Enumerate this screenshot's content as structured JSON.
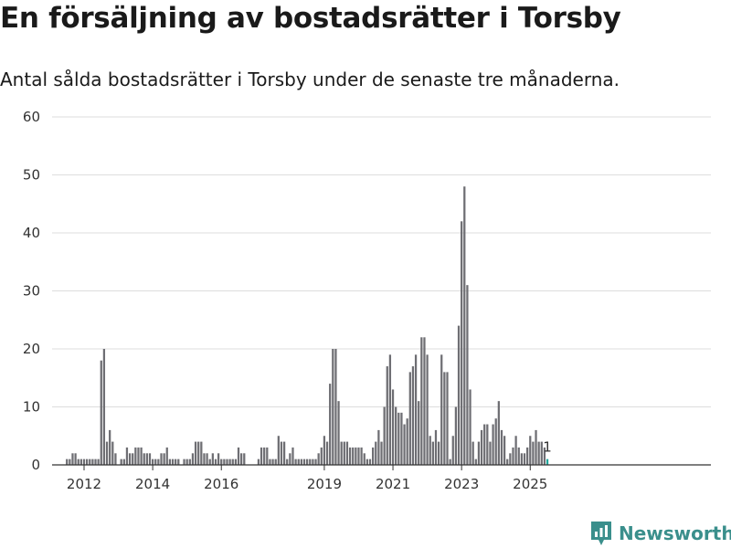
{
  "header": {
    "title": "En försäljning av bostadsrätter i Torsby",
    "subtitle": "Antal sålda bostadsrätter i Torsby under de senaste tre månaderna."
  },
  "brand": {
    "name": "Newsworthy",
    "color": "#3a8f8c"
  },
  "colors": {
    "bar": "#6e6e73",
    "highlight": "#1fa79c"
  },
  "chart_data": {
    "type": "bar",
    "title": "En försäljning av bostadsrätter i Torsby",
    "subtitle": "Antal sålda bostadsrätter i Torsby under de senaste tre månaderna.",
    "xlabel": "",
    "ylabel": "",
    "ylim": [
      0,
      60
    ],
    "yticks": [
      "0",
      "10",
      "20",
      "30",
      "40",
      "50",
      "60"
    ],
    "xticks": [
      {
        "label": "2012",
        "month_index": 0
      },
      {
        "label": "2014",
        "month_index": 24
      },
      {
        "label": "2016",
        "month_index": 48
      },
      {
        "label": "2019",
        "month_index": 84
      },
      {
        "label": "2021",
        "month_index": 108
      },
      {
        "label": "2023",
        "month_index": 132
      },
      {
        "label": "2025",
        "month_index": 156
      }
    ],
    "grid": true,
    "first_month_offset": -8,
    "month_count": 176,
    "highlight_last": true,
    "last_value_label": "1",
    "values": [
      0,
      0,
      1,
      1,
      2,
      2,
      1,
      1,
      1,
      1,
      1,
      1,
      1,
      1,
      18,
      20,
      4,
      6,
      4,
      2,
      0,
      1,
      1,
      3,
      2,
      2,
      3,
      3,
      3,
      2,
      2,
      2,
      1,
      1,
      1,
      2,
      2,
      3,
      1,
      1,
      1,
      1,
      0,
      1,
      1,
      1,
      2,
      4,
      4,
      4,
      2,
      2,
      1,
      2,
      1,
      2,
      1,
      1,
      1,
      1,
      1,
      1,
      3,
      2,
      2,
      0,
      0,
      0,
      0,
      1,
      3,
      3,
      3,
      1,
      1,
      1,
      5,
      4,
      4,
      1,
      2,
      3,
      1,
      1,
      1,
      1,
      1,
      1,
      1,
      1,
      2,
      3,
      5,
      4,
      14,
      20,
      20,
      11,
      4,
      4,
      4,
      3,
      3,
      3,
      3,
      3,
      2,
      1,
      1,
      3,
      4,
      6,
      4,
      10,
      17,
      19,
      13,
      10,
      9,
      9,
      7,
      8,
      16,
      17,
      19,
      11,
      22,
      22,
      19,
      5,
      4,
      6,
      4,
      19,
      16,
      16,
      1,
      5,
      10,
      24,
      42,
      48,
      31,
      13,
      4,
      1,
      4,
      6,
      7,
      7,
      4,
      7,
      8,
      11,
      6,
      5,
      1,
      2,
      3,
      5,
      3,
      2,
      2,
      3,
      5,
      4,
      6,
      4,
      4,
      3,
      1
    ]
  }
}
